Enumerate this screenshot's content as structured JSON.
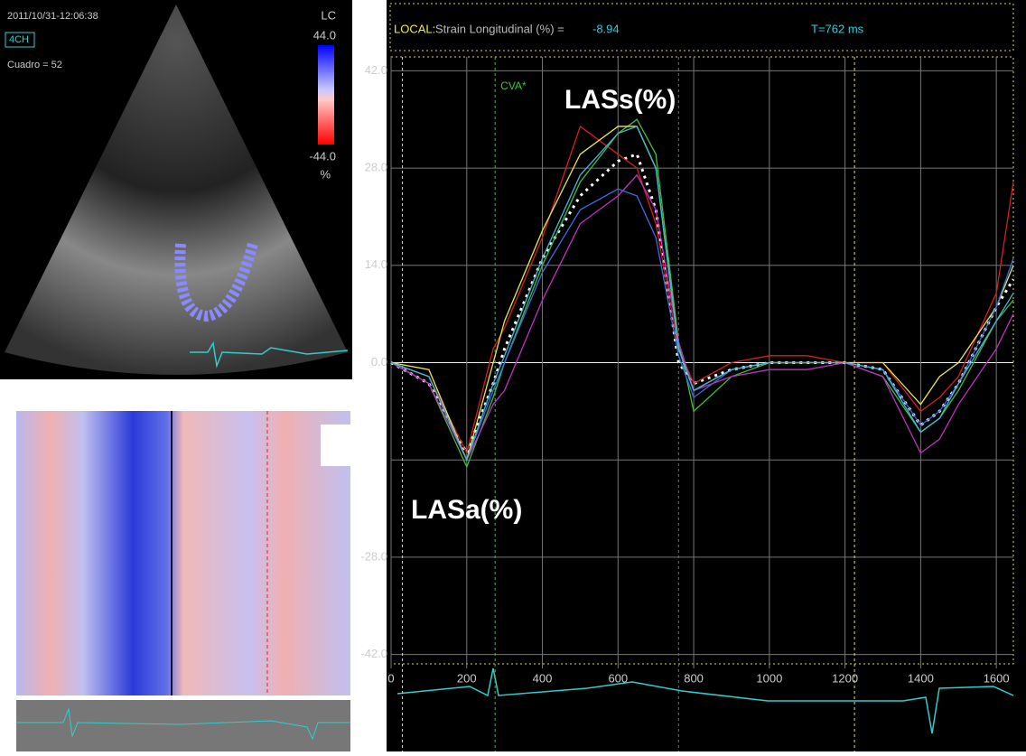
{
  "chart_data": {
    "type": "line",
    "header": {
      "mode": "LOCAL:",
      "measure": "Strain Longitudinal (%) =",
      "measure_value": "-8.94",
      "time": "T=762 ms"
    },
    "annotations": {
      "peak": "LASs(%)",
      "trough": "LASa(%)",
      "event": "CVA*"
    },
    "left_panel": {
      "timestamp": "2011/10/31-12:06:38",
      "view": "4CH",
      "frame": "Cuadro = 52",
      "scale_name": "LC",
      "scale_max": "44.0",
      "scale_min": "-44.0",
      "scale_unit": "%"
    },
    "x": [
      0,
      100,
      200,
      270,
      300,
      400,
      500,
      600,
      650,
      700,
      760,
      800,
      900,
      1000,
      1100,
      1200,
      1300,
      1400,
      1450,
      1500,
      1600,
      1645
    ],
    "series": [
      {
        "color": "#ffffff",
        "dotted": true,
        "values": [
          0,
          -3,
          -13,
          -3,
          2,
          15,
          24,
          29,
          30,
          22,
          0,
          -3,
          -1,
          0,
          0,
          0,
          -1,
          -9,
          -7,
          -3,
          8,
          12
        ]
      },
      {
        "color": "#d42020",
        "values": [
          0,
          -2,
          -13,
          2,
          5,
          18,
          34,
          30,
          28,
          20,
          2,
          -3,
          0,
          1,
          1,
          0,
          0,
          -7,
          -5,
          -2,
          10,
          26
        ]
      },
      {
        "color": "#3fbf3f",
        "values": [
          0,
          -3,
          -15,
          -5,
          0,
          14,
          26,
          33,
          35,
          30,
          3,
          -7,
          -2,
          0,
          0,
          0,
          -2,
          -10,
          -8,
          -4,
          6,
          9
        ]
      },
      {
        "color": "#e8e84a",
        "values": [
          0,
          -1,
          -14,
          0,
          6,
          19,
          30,
          34,
          34,
          28,
          2,
          -4,
          -1,
          0,
          0,
          0,
          0,
          -6,
          -2,
          0,
          8,
          14
        ]
      },
      {
        "color": "#3a6fe0",
        "values": [
          0,
          -2,
          -14,
          -4,
          0,
          13,
          22,
          25,
          24,
          18,
          1,
          -5,
          -1,
          0,
          0,
          0,
          -1,
          -9,
          -7,
          -3,
          8,
          15
        ]
      },
      {
        "color": "#c030c0",
        "values": [
          0,
          -3,
          -14,
          -6,
          -4,
          9,
          20,
          24,
          27,
          22,
          3,
          -4,
          -2,
          -1,
          -1,
          0,
          -2,
          -13,
          -11,
          -6,
          2,
          7
        ]
      },
      {
        "color": "#40b8d8",
        "values": [
          0,
          -2,
          -14,
          -3,
          1,
          15,
          27,
          33,
          34,
          28,
          2,
          -4,
          -1,
          0,
          0,
          0,
          -1,
          -10,
          -8,
          -3,
          6,
          10
        ]
      }
    ],
    "event_lines": [
      {
        "x": 30,
        "color": "#e8e84a"
      },
      {
        "x": 275,
        "color": "#3fbf3f"
      },
      {
        "x": 760,
        "color": "#2a8a9a"
      },
      {
        "x": 1225,
        "color": "#e8e84a"
      }
    ],
    "xlim": [
      0,
      1645
    ],
    "ylim": [
      -44,
      44
    ],
    "xticks": [
      0,
      200,
      400,
      600,
      800,
      1000,
      1200,
      1400,
      1600
    ],
    "yticks": [
      {
        "value": 42,
        "label": "42.0"
      },
      {
        "value": 28,
        "label": "28.0"
      },
      {
        "value": 14,
        "label": "14.0"
      },
      {
        "value": 0,
        "label": "0.0"
      },
      {
        "value": -28,
        "label": "-28.0"
      },
      {
        "value": -42,
        "label": "-42.0"
      }
    ],
    "ygrid_extra": [
      -14
    ],
    "grid": true
  }
}
